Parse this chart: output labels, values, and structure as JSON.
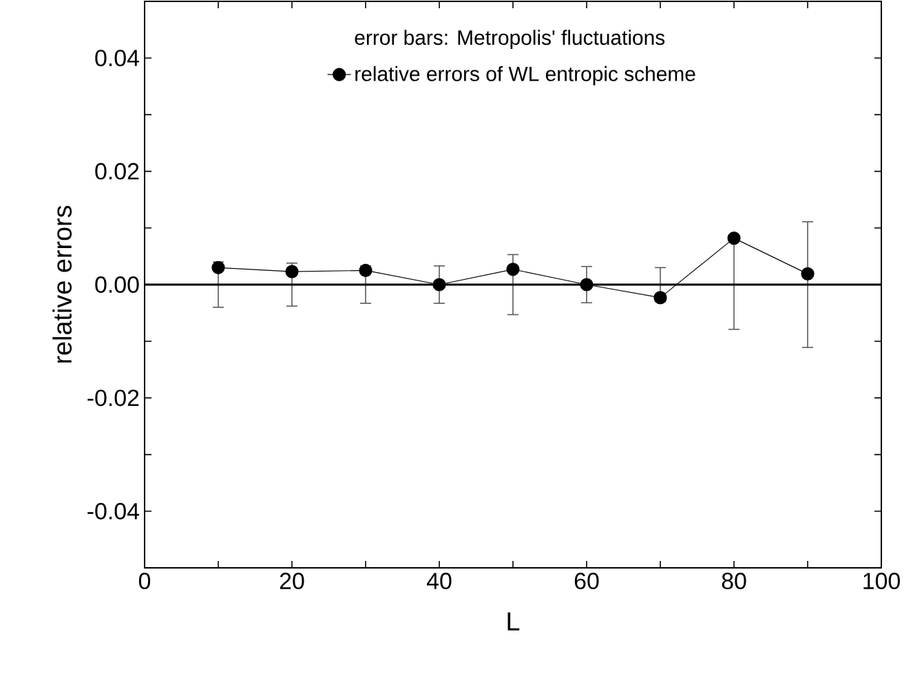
{
  "chart_data": {
    "type": "line",
    "xlabel": "L",
    "ylabel": "relative errors",
    "legend_title": "error bars: Metropolis' fluctuations",
    "x": [
      10,
      20,
      30,
      40,
      50,
      60,
      70,
      80,
      90
    ],
    "series": [
      {
        "name": "relative errors of WL entropic scheme",
        "color": "#000000",
        "values": [
          0.003,
          0.0023,
          0.0025,
          0,
          0.0027,
          0,
          -0.0023,
          0.0082,
          0.0019
        ],
        "errors": [
          [
            -0.004,
            0.004
          ],
          [
            -0.0038,
            0.0038
          ],
          [
            -0.0033,
            0.0033
          ],
          [
            -0.0033,
            0.0033
          ],
          [
            -0.0053,
            0.0053
          ],
          [
            -0.0032,
            0.0032
          ],
          [
            -0.003,
            0.003
          ],
          [
            -0.0079,
            0.0079
          ],
          [
            -0.0111,
            0.0111
          ]
        ]
      }
    ],
    "xlim": [
      0,
      100
    ],
    "ylim": [
      -0.05,
      0.05
    ],
    "xticks": [
      0,
      {
        "value": 10,
        "label": null
      },
      20,
      {
        "value": 30,
        "label": null
      },
      40,
      {
        "value": 50,
        "label": null
      },
      60,
      {
        "value": 70,
        "label": null
      },
      80,
      {
        "value": 90,
        "label": null
      },
      100
    ],
    "yticks": [
      {
        "value": -0.05,
        "label": null
      },
      {
        "value": -0.04,
        "label": "-0.04"
      },
      {
        "value": -0.03,
        "label": null
      },
      {
        "value": -0.02,
        "label": "-0.02"
      },
      {
        "value": -0.01,
        "label": null
      },
      {
        "value": 0,
        "label": "0.00"
      },
      {
        "value": 0.01,
        "label": null
      },
      {
        "value": 0.02,
        "label": "0.02"
      },
      {
        "value": 0.03,
        "label": null
      },
      {
        "value": 0.04,
        "label": "0.04"
      },
      {
        "value": 0.05,
        "label": null
      }
    ],
    "ref_lines": [
      {
        "axis": "y",
        "value": 0,
        "color": "#000000"
      }
    ],
    "legend": "top",
    "marker": "circle",
    "line_style": "solid",
    "grid": false
  }
}
